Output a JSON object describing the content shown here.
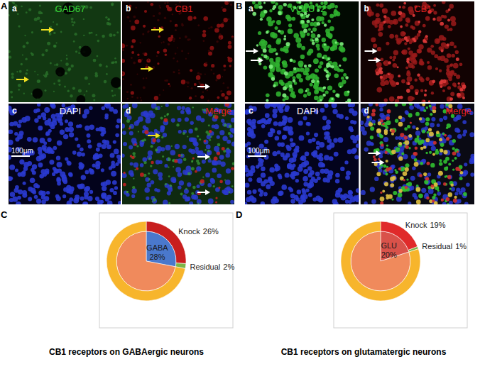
{
  "panels": [
    {
      "label": "A",
      "scale_bar": "100μm",
      "subpanels": [
        {
          "letter": "a",
          "stain": "GAD67",
          "color": "#39d839"
        },
        {
          "letter": "b",
          "stain": "CB1",
          "color": "#e02020"
        },
        {
          "letter": "c",
          "stain": "DAPI",
          "color": "#ffffff"
        },
        {
          "letter": "d",
          "stain": "Merge",
          "color": "#e02020"
        }
      ]
    },
    {
      "label": "B",
      "scale_bar": "100μm",
      "subpanels": [
        {
          "letter": "a",
          "stain": "VGLUT2",
          "color": "#39d839"
        },
        {
          "letter": "b",
          "stain": "CB1",
          "color": "#e02020"
        },
        {
          "letter": "c",
          "stain": "DAPI",
          "color": "#ffffff"
        },
        {
          "letter": "d",
          "stain": "Merge",
          "color": "#e02020"
        }
      ]
    }
  ],
  "chart_data": [
    {
      "panel": "C",
      "type": "pie",
      "title": "CB1 receptors on GABAergic neurons",
      "series": [
        {
          "categories": [
            "GABA",
            null
          ],
          "values": [
            28,
            72
          ],
          "value_labels": [
            "28%",
            null
          ],
          "colors": [
            "#4a78cc",
            "#f08a5c"
          ]
        },
        {
          "categories": [
            "Knock",
            "Residual",
            null
          ],
          "values": [
            26,
            2,
            72
          ],
          "value_labels": [
            "26%",
            "2%",
            null
          ],
          "colors": [
            "#c81e1e",
            "#7db646",
            "#f7b52c"
          ]
        }
      ]
    },
    {
      "panel": "D",
      "type": "pie",
      "title": "CB1 receptors on glutamatergic neurons",
      "series": [
        {
          "categories": [
            "GLU",
            null
          ],
          "values": [
            20,
            80
          ],
          "value_labels": [
            "20%",
            null
          ],
          "colors": [
            "#d9524a",
            "#f08a5c"
          ]
        },
        {
          "categories": [
            "Knock",
            "Residual",
            null
          ],
          "values": [
            19,
            1,
            80
          ],
          "value_labels": [
            "19%",
            "1%",
            null
          ],
          "colors": [
            "#e02a2a",
            "#7db646",
            "#f7b52c"
          ]
        }
      ]
    }
  ]
}
